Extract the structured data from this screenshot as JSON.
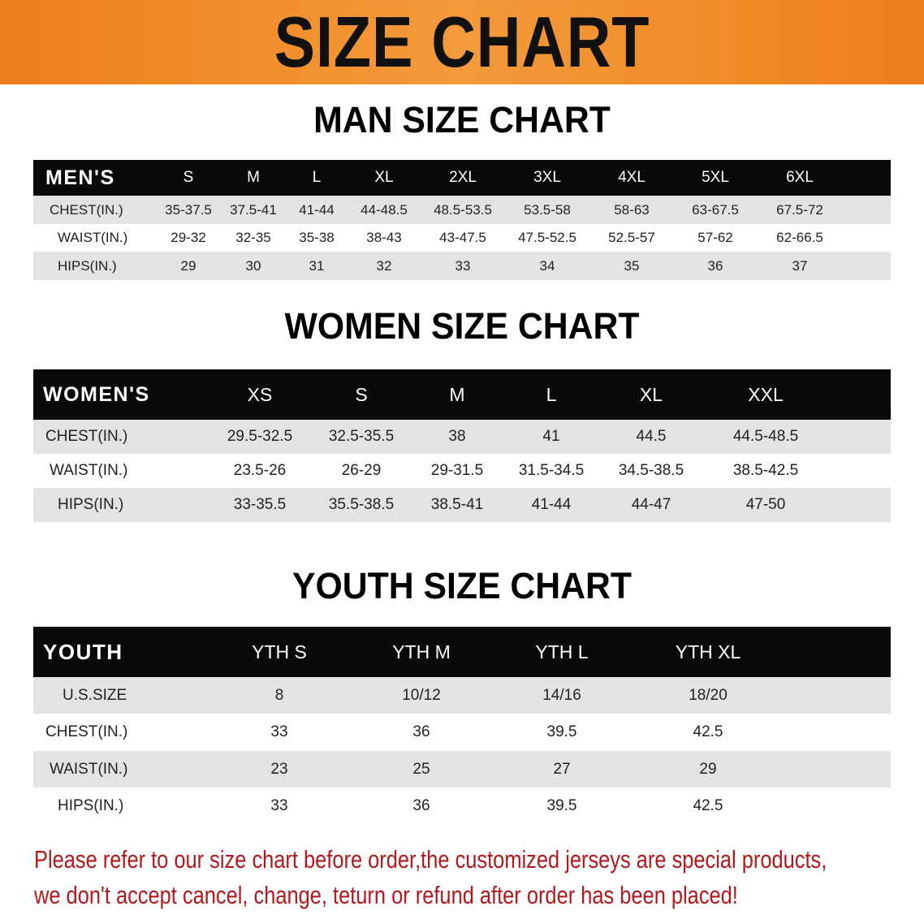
{
  "banner": {
    "title": "SIZE CHART",
    "color": "#ef7f1a"
  },
  "tables": [
    {
      "title": "MAN SIZE CHART",
      "header": "MEN'S",
      "columns": [
        "S",
        "M",
        "L",
        "XL",
        "2XL",
        "3XL",
        "4XL",
        "5XL",
        "6XL"
      ],
      "rows": [
        {
          "label": "CHEST(IN.)",
          "values": [
            "35-37.5",
            "37.5-41",
            "41-44",
            "44-48.5",
            "48.5-53.5",
            "53.5-58",
            "58-63",
            "63-67.5",
            "67.5-72"
          ]
        },
        {
          "label": "WAIST(IN.)",
          "values": [
            "29-32",
            "32-35",
            "35-38",
            "38-43",
            "43-47.5",
            "47.5-52.5",
            "52.5-57",
            "57-62",
            "62-66.5"
          ]
        },
        {
          "label": "HIPS(IN.)",
          "values": [
            "29",
            "30",
            "31",
            "32",
            "33",
            "34",
            "35",
            "36",
            "37"
          ]
        }
      ]
    },
    {
      "title": "WOMEN SIZE CHART",
      "header": "WOMEN'S",
      "columns": [
        "XS",
        "S",
        "M",
        "L",
        "XL",
        "XXL"
      ],
      "rows": [
        {
          "label": "CHEST(IN.)",
          "values": [
            "29.5-32.5",
            "32.5-35.5",
            "38",
            "41",
            "44.5",
            "44.5-48.5"
          ]
        },
        {
          "label": "WAIST(IN.)",
          "values": [
            "23.5-26",
            "26-29",
            "29-31.5",
            "31.5-34.5",
            "34.5-38.5",
            "38.5-42.5"
          ]
        },
        {
          "label": "HIPS(IN.)",
          "values": [
            "33-35.5",
            "35.5-38.5",
            "38.5-41",
            "41-44",
            "44-47",
            "47-50"
          ]
        }
      ]
    },
    {
      "title": "YOUTH SIZE CHART",
      "header": "YOUTH",
      "columns": [
        "YTH S",
        "YTH M",
        "YTH L",
        "YTH XL"
      ],
      "rows": [
        {
          "label": "U.S.SIZE",
          "values": [
            "8",
            "10/12",
            "14/16",
            "18/20"
          ]
        },
        {
          "label": "CHEST(IN.)",
          "values": [
            "33",
            "36",
            "39.5",
            "42.5"
          ]
        },
        {
          "label": "WAIST(IN.)",
          "values": [
            "23",
            "25",
            "27",
            "29"
          ]
        },
        {
          "label": "HIPS(IN.)",
          "values": [
            "33",
            "36",
            "39.5",
            "42.5"
          ]
        }
      ]
    }
  ],
  "notice": {
    "line1": "Please refer to our size chart before order,the customized jerseys are special products,",
    "line2": "we don't accept cancel, change, teturn or refund after order has been placed!",
    "color": "#b3181c"
  }
}
